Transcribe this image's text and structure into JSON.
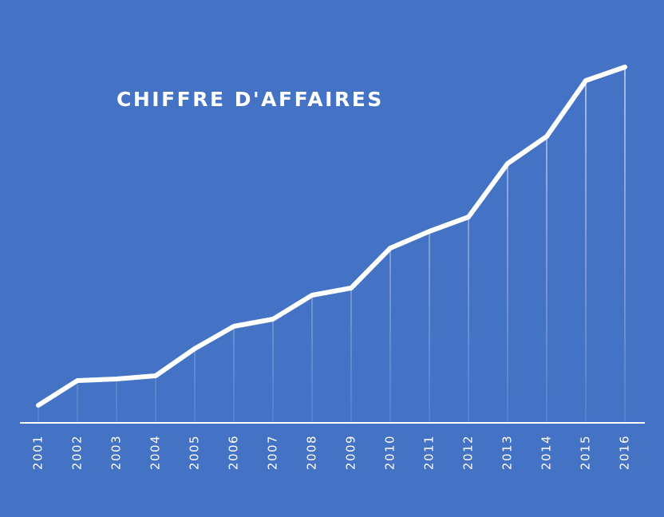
{
  "chart_data": {
    "type": "line",
    "title": "CHIFFRE D'AFFAIRES",
    "categories": [
      "2001",
      "2002",
      "2003",
      "2004",
      "2005",
      "2006",
      "2007",
      "2008",
      "2009",
      "2010",
      "2011",
      "2012",
      "2013",
      "2014",
      "2015",
      "2016"
    ],
    "values": [
      22,
      53,
      55,
      59,
      93,
      121,
      130,
      160,
      169,
      219,
      240,
      258,
      325,
      359,
      429,
      446
    ],
    "color": "#ffffff",
    "ylim": [
      0,
      460
    ]
  }
}
